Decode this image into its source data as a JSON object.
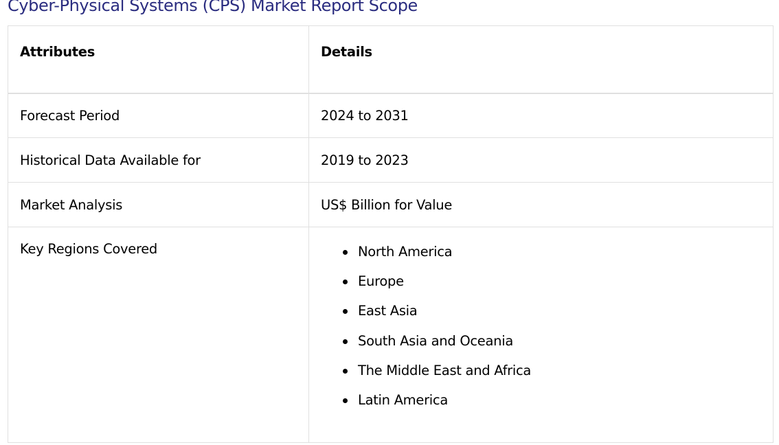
{
  "title": "Cyber-Physical Systems (CPS) Market Report Scope",
  "table": {
    "headers": [
      "Attributes",
      "Details"
    ],
    "rows": [
      {
        "attribute": "Forecast Period",
        "detail": "2024 to 2031"
      },
      {
        "attribute": "Historical Data Available for",
        "detail": "2019 to 2023"
      },
      {
        "attribute": "Market Analysis",
        "detail": "US$ Billion for Value"
      }
    ],
    "regions": {
      "attribute": "Key Regions Covered",
      "items": [
        "North America",
        "Europe",
        "East Asia",
        "South Asia and Oceania",
        "The Middle East and Africa",
        "Latin America"
      ]
    }
  },
  "colors": {
    "title": "#2b2d80",
    "border": "#e0e0e0",
    "text": "#000000"
  }
}
